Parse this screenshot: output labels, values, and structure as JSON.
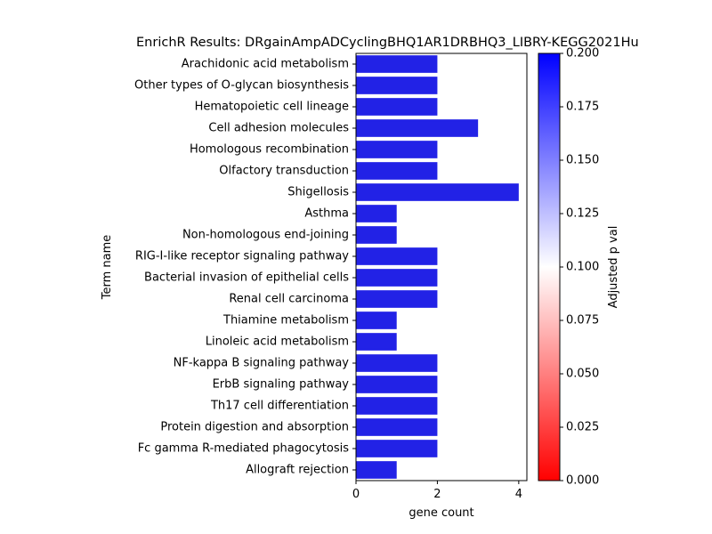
{
  "chart_data": {
    "type": "bar",
    "orientation": "horizontal",
    "title": "EnrichR Results: DRgainAmpADCyclingBHQ1AR1DRBHQ3_LIBRY-KEGG2021Hu",
    "xlabel": "gene count",
    "ylabel": "Term name",
    "xlim": [
      0,
      4.2
    ],
    "x_ticks": [
      0,
      2,
      4
    ],
    "grid": false,
    "categories": [
      "Arachidonic acid metabolism",
      "Other types of O-glycan biosynthesis",
      "Hematopoietic cell lineage",
      "Cell adhesion molecules",
      "Homologous recombination",
      "Olfactory transduction",
      "Shigellosis",
      "Asthma",
      "Non-homologous end-joining",
      "RIG-I-like receptor signaling pathway",
      "Bacterial invasion of epithelial cells",
      "Renal cell carcinoma",
      "Thiamine metabolism",
      "Linoleic acid metabolism",
      "NF-kappa B signaling pathway",
      "ErbB signaling pathway",
      "Th17 cell differentiation",
      "Protein digestion and absorption",
      "Fc gamma R-mediated phagocytosis",
      "Allograft rejection"
    ],
    "values": [
      2,
      2,
      2,
      3,
      2,
      2,
      4,
      1,
      1,
      2,
      2,
      2,
      1,
      1,
      2,
      2,
      2,
      2,
      2,
      1
    ],
    "bar_color": "#2222e6",
    "colorbar": {
      "label": "Adjusted p val",
      "range": [
        0,
        0.2
      ],
      "ticks": [
        "0.000",
        "0.025",
        "0.050",
        "0.075",
        "0.100",
        "0.125",
        "0.150",
        "0.175",
        "0.200"
      ],
      "colors": [
        "#ff0000",
        "#ffffff",
        "#0000ff"
      ]
    }
  }
}
